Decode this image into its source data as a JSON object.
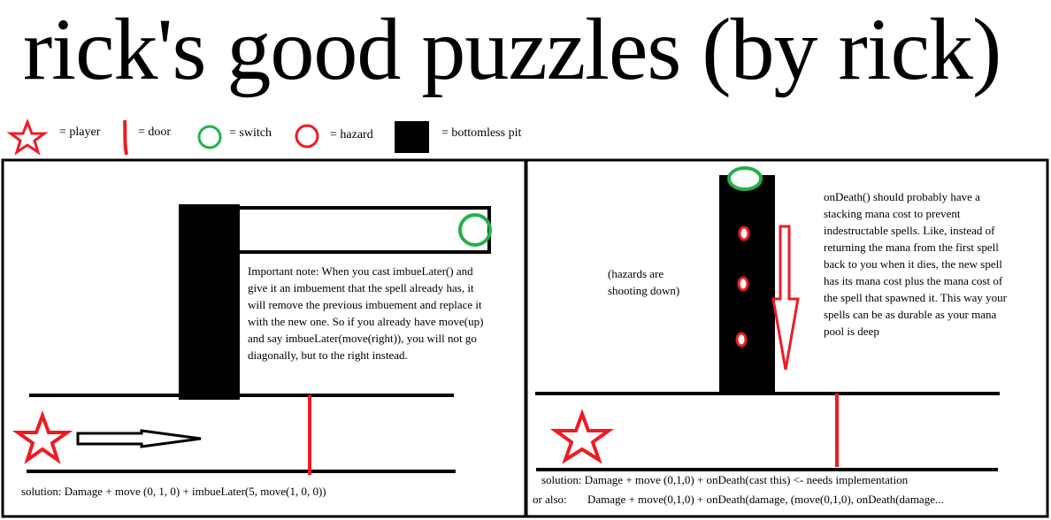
{
  "title": "rick's good puzzles (by rick)",
  "legend": {
    "player": "= player",
    "door": "= door",
    "switch": "= switch",
    "hazard": "= hazard",
    "pit": "= bottomless pit"
  },
  "colors": {
    "red": "#ed1c24",
    "green": "#22b14c",
    "black": "#000000"
  },
  "left_puzzle": {
    "note": "Important note: When you cast imbueLater() and give it an imbuement that the spell already has, it will remove the previous imbuement and replace it with the new one. So if you already have move(up) and say imbueLater(move(right)), you will not go diagonally, but to the right instead.",
    "solution": "solution: Damage + move (0, 1, 0) + imbueLater(5, move(1, 0, 0))"
  },
  "right_puzzle": {
    "hazard_note": "(hazards are shooting down)",
    "note": "onDeath() should probably have a stacking mana cost to prevent indestructable spells. Like, instead of returning the mana from the first spell back to you when it dies, the new spell has its mana cost plus the mana cost of the spell that spawned it. This way your spells can be as durable as your mana pool is deep",
    "solution": "solution: Damage + move (0,1,0) + onDeath(cast this) <- needs implementation",
    "alt_label": "or also:",
    "alt_solution": "Damage + move(0,1,0) + onDeath(damage, (move(0,1,0), onDeath(damage..."
  }
}
